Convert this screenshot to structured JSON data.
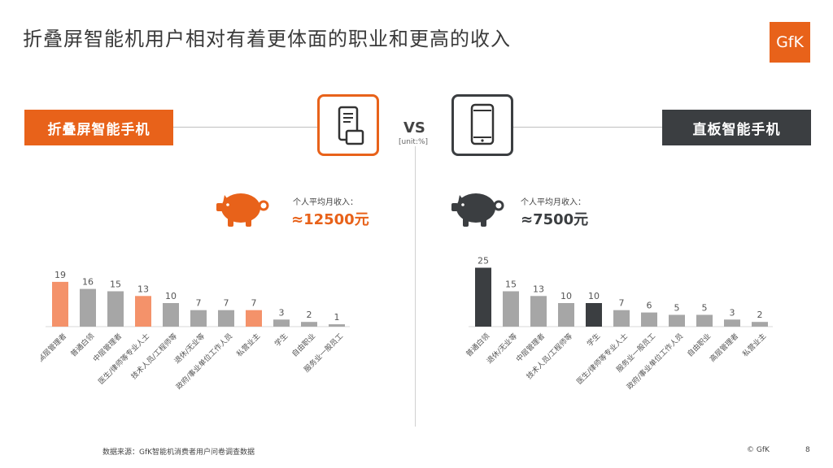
{
  "title": "折叠屏智能机用户相对有着更体面的职业和更高的收入",
  "logo": "GfK",
  "left_label": "折叠屏智能手机",
  "right_label": "直板智能手机",
  "vs": "VS",
  "unit": "[unit:%]",
  "income_label": "个人平均月收入：",
  "left_income": "≈12500元",
  "right_income": "≈7500元",
  "footer_source": "数据来源：GfK智能机消费者用户问卷调查数据",
  "footer_copy": "© GfK",
  "page_number": "8",
  "colors": {
    "accent_orange": "#e8621a",
    "highlight_orange": "#f4926a",
    "gray_bar": "#a6a6a6",
    "dark_bar": "#3b3e41"
  },
  "chart_data": [
    {
      "type": "bar",
      "categories": [
        "高层管理者",
        "普通白领",
        "中层管理者",
        "医生/律师等专业人士",
        "技术人员/工程师等",
        "退休/无业等",
        "政府/事业单位工作人员",
        "私营业主",
        "学生",
        "自由职业",
        "服务业一般员工"
      ],
      "values": [
        19,
        16,
        15,
        13,
        10,
        7,
        7,
        7,
        3,
        2,
        1
      ],
      "highlighted": [
        "高层管理者",
        "医生/律师等专业人士",
        "私营业主"
      ],
      "ylim": [
        0,
        25
      ]
    },
    {
      "type": "bar",
      "categories": [
        "普通白领",
        "退休/无业等",
        "中层管理者",
        "技术人员/工程师等",
        "学生",
        "医生/律师等专业人士",
        "服务业一般员工",
        "政府/事业单位工作人员",
        "自由职业",
        "高层管理者",
        "私营业主"
      ],
      "values": [
        25,
        15,
        13,
        10,
        10,
        7,
        6,
        5,
        5,
        3,
        2
      ],
      "highlighted": [
        "普通白领",
        "学生"
      ],
      "ylim": [
        0,
        25
      ]
    }
  ]
}
